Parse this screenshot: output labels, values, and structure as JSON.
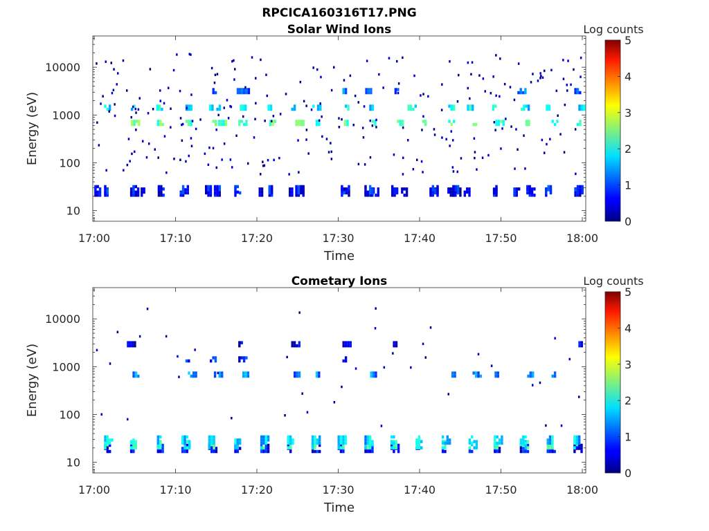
{
  "figure_title": "RPCICA160316T17.PNG",
  "chart_data": [
    {
      "type": "heatmap",
      "title": "Solar Wind Ions",
      "xlabel": "Time",
      "ylabel": "Energy (eV)",
      "y_scale": "log",
      "ylim": [
        6,
        45000
      ],
      "xlim": [
        "17:00",
        "18:00"
      ],
      "x_ticks": [
        "17:00",
        "17:10",
        "17:20",
        "17:30",
        "17:40",
        "17:50",
        "18:00"
      ],
      "y_ticks": [
        "10",
        "100",
        "1000",
        "10000"
      ],
      "colorbar": {
        "label": "Log counts",
        "min": 0,
        "max": 5,
        "ticks": [
          "0",
          "1",
          "2",
          "3",
          "4",
          "5"
        ],
        "colormap": "jet"
      },
      "series": [
        {
          "energy_eV": 25,
          "log_counts_typical": 0.4,
          "pulses_minutes": [
            0.3,
            1.5,
            4.7,
            6.0,
            8.1,
            10.8,
            13.9,
            15.0,
            17.5,
            20.5,
            21.7,
            24.2,
            25.0,
            30.6,
            33.5,
            34.2,
            36.8,
            38.0,
            41.5,
            43.7,
            44.3,
            45.7,
            49.3,
            51.8,
            53.4,
            55.7,
            59.3
          ]
        },
        {
          "energy_eV": 28,
          "log_counts_typical": 0.6,
          "pulses_minutes": [
            0.3,
            1.5,
            4.7,
            8.1,
            10.8,
            13.9,
            15.0,
            17.5,
            21.7,
            25.0,
            30.6,
            33.5,
            36.8,
            41.5,
            44.3,
            49.3,
            53.4,
            55.7,
            59.3
          ]
        },
        {
          "energy_eV": 650,
          "log_counts_typical": 2.2,
          "pulses_minutes": [
            4.8,
            8.0,
            11.5,
            14.8,
            15.5,
            18.0,
            21.8,
            25.0,
            27.5,
            31.0,
            34.4,
            37.5,
            40.6,
            43.8,
            46.8,
            49.6,
            53.3,
            56.5,
            59.6
          ]
        },
        {
          "energy_eV": 1350,
          "log_counts_typical": 1.7,
          "pulses_minutes": [
            1.5,
            4.8,
            7.9,
            11.5,
            14.4,
            15.3,
            17.9,
            21.6,
            24.5,
            27.1,
            30.8,
            34.1,
            38.8,
            43.8,
            46.1,
            49.2,
            52.7,
            55.8,
            59.8
          ]
        },
        {
          "energy_eV": 3000,
          "log_counts_typical": 1.0,
          "pulses_minutes": [
            14.8,
            17.8,
            18.3,
            30.8,
            33.6,
            37.2,
            52.3,
            59.3
          ]
        }
      ]
    },
    {
      "type": "heatmap",
      "title": "Cometary Ions",
      "xlabel": "Time",
      "ylabel": "Energy (eV)",
      "y_scale": "log",
      "ylim": [
        6,
        45000
      ],
      "xlim": [
        "17:00",
        "18:00"
      ],
      "x_ticks": [
        "17:00",
        "17:10",
        "17:20",
        "17:30",
        "17:40",
        "17:50",
        "18:00"
      ],
      "y_ticks": [
        "10",
        "100",
        "1000",
        "10000"
      ],
      "colorbar": {
        "label": "Log counts",
        "min": 0,
        "max": 5,
        "ticks": [
          "0",
          "1",
          "2",
          "3",
          "4",
          "5"
        ],
        "colormap": "jet"
      },
      "series": [
        {
          "energy_eV": 20,
          "log_counts_typical": 0.5,
          "pulses_minutes": [
            1.5,
            4.7,
            8.0,
            11.0,
            14.3,
            17.5,
            20.7,
            24.0,
            27.0,
            30.2,
            33.5,
            36.7,
            39.8,
            43.0,
            46.3,
            49.4,
            52.6,
            55.9,
            59.2
          ]
        },
        {
          "energy_eV": 24,
          "log_counts_typical": 1.9,
          "pulses_minutes": [
            1.5,
            4.7,
            8.0,
            11.0,
            14.3,
            17.5,
            20.7,
            24.0,
            27.0,
            30.2,
            33.5,
            36.7,
            39.8,
            43.0,
            46.3,
            49.4,
            52.6,
            55.9,
            59.2
          ]
        },
        {
          "energy_eV": 30,
          "log_counts_typical": 1.5,
          "pulses_minutes": [
            1.5,
            4.7,
            8.0,
            11.0,
            14.3,
            17.5,
            20.7,
            24.0,
            27.0,
            30.2,
            33.5,
            36.7,
            39.8,
            43.0,
            46.3,
            49.4,
            52.6,
            55.9,
            59.2
          ]
        },
        {
          "energy_eV": 650,
          "log_counts_typical": 1.2,
          "pulses_minutes": [
            5.0,
            11.8,
            15.0,
            18.5,
            24.8,
            27.5,
            34.2,
            44.2,
            46.8,
            49.5,
            53.5,
            56.5
          ]
        },
        {
          "energy_eV": 1350,
          "log_counts_typical": 0.6,
          "pulses_minutes": [
            11.5,
            14.5,
            18.0,
            30.8
          ]
        },
        {
          "energy_eV": 2800,
          "log_counts_typical": 0.4,
          "pulses_minutes": [
            4.3,
            18.0,
            24.5,
            30.8,
            37.0,
            59.8
          ]
        }
      ]
    }
  ]
}
